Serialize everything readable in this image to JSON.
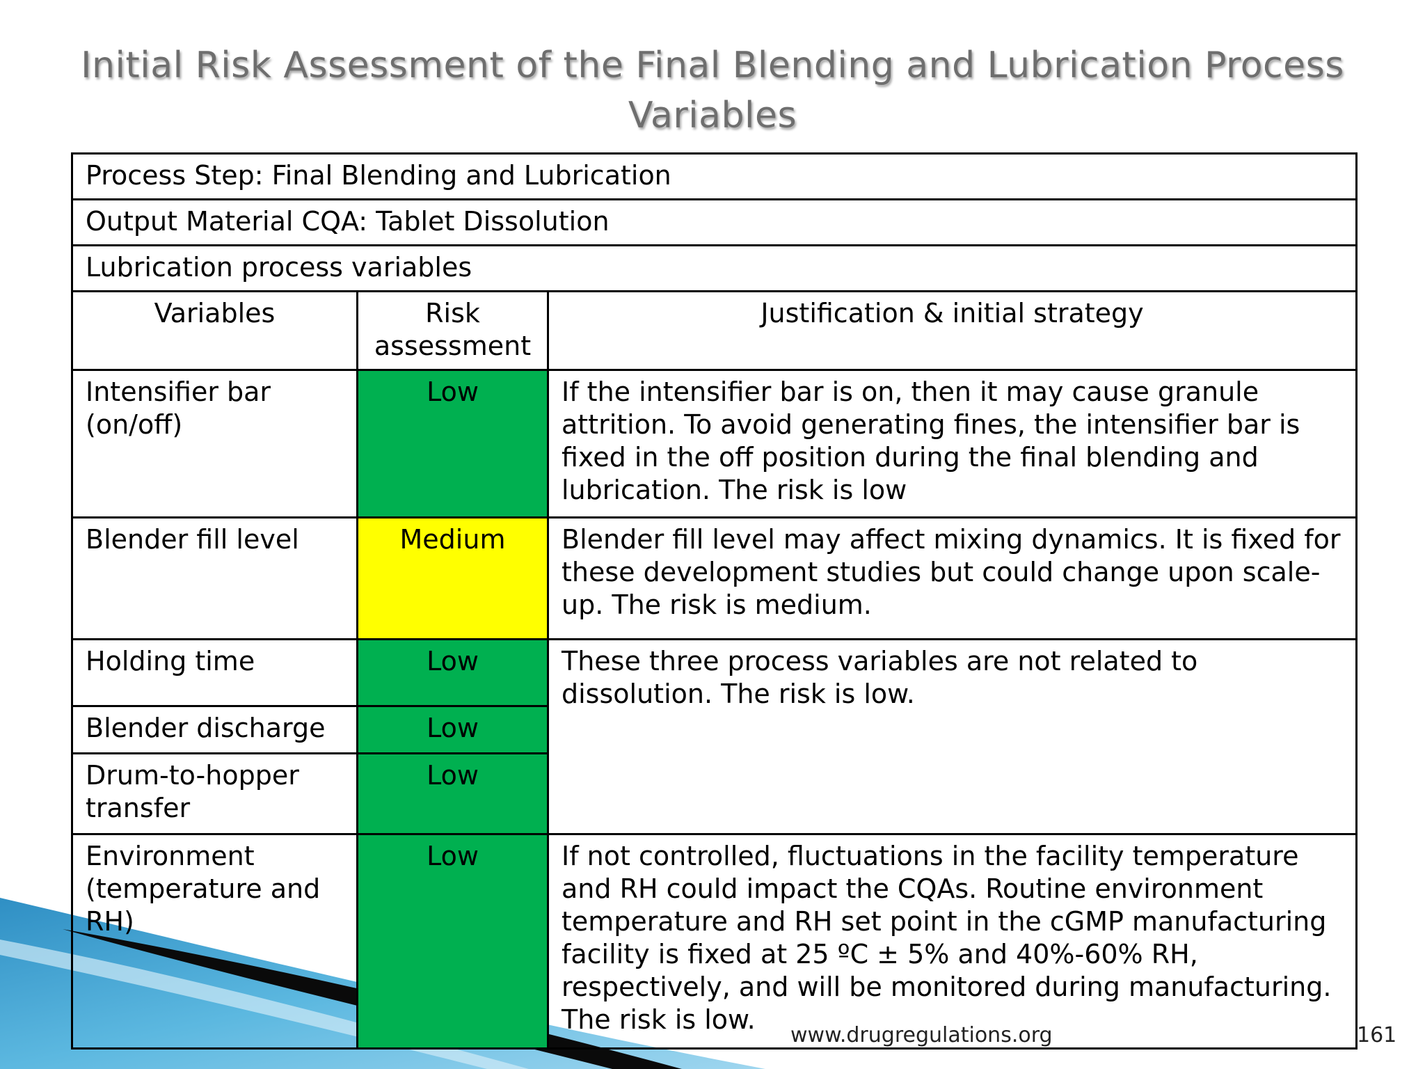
{
  "title": "Initial Risk Assessment of the Final Blending and Lubrication Process Variables",
  "table": {
    "process_step": "Process Step: Final Blending and Lubrication",
    "output_material": "Output Material CQA: Tablet Dissolution",
    "section": "Lubrication process variables",
    "headers": {
      "variables": "Variables",
      "risk": "Risk assessment",
      "justification": "Justification & initial strategy"
    },
    "rows": [
      {
        "variable": "Intensifier bar (on/off)",
        "risk": "Low",
        "justification": "If the intensifier bar is on, then it may cause granule attrition. To avoid generating fines, the intensifier bar is fixed in the off position during the final blending and lubrication. The risk is low"
      },
      {
        "variable": "Blender fill level",
        "risk": "Medium",
        "justification": "Blender fill level may affect mixing dynamics. It is fixed for these development studies but could change upon scale-up. The risk is medium."
      },
      {
        "variable": "Holding time",
        "risk": "Low",
        "justification": "These three process variables are not related to dissolution. The risk is low."
      },
      {
        "variable": "Blender discharge",
        "risk": "Low"
      },
      {
        "variable": "Drum-to-hopper transfer",
        "risk": "Low"
      },
      {
        "variable": "Environment (temperature and RH)",
        "risk": "Low",
        "justification": "If not controlled, fluctuations in the facility temperature and RH could impact the CQAs. Routine environment temperature and RH set point in the cGMP manufacturing facility is fixed at 25 ºC ± 5% and 40%-60% RH, respectively, and will be monitored during manufacturing. The risk is low."
      }
    ]
  },
  "footer": {
    "url": "www.drugregulations.org",
    "page": "161"
  },
  "colors": {
    "low": "#00b050",
    "medium": "#ffff00",
    "title": "#6e6e6e"
  }
}
